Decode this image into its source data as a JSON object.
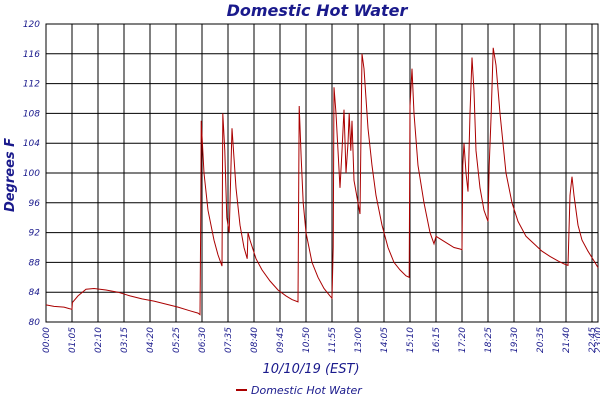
{
  "chart_data": {
    "type": "line",
    "title": "Domestic Hot Water",
    "xlabel": "10/10/19 (EST)",
    "ylabel": "Degrees F",
    "x_ticks": [
      "00:00",
      "01:05",
      "02:10",
      "03:15",
      "04:20",
      "05:25",
      "06:30",
      "07:35",
      "08:40",
      "09:45",
      "10:50",
      "11:55",
      "13:00",
      "14:05",
      "15:10",
      "16:15",
      "17:20",
      "18:25",
      "19:30",
      "20:35",
      "21:40",
      "22:45",
      "23:00"
    ],
    "y_ticks": [
      80,
      84,
      88,
      92,
      96,
      100,
      104,
      108,
      112,
      116,
      120
    ],
    "ylim": [
      80,
      120
    ],
    "xlim": [
      "00:00",
      "23:00"
    ],
    "grid": true,
    "legend_position": "bottom-center",
    "colors": {
      "line": "#aa0000",
      "text": "#1a1a8c",
      "grid": "#000000"
    },
    "series": [
      {
        "name": "Domestic Hot Water",
        "points": [
          [
            "00:00",
            82.3
          ],
          [
            "00:20",
            82.1
          ],
          [
            "00:45",
            82.0
          ],
          [
            "00:58",
            81.8
          ],
          [
            "01:05",
            81.7
          ],
          [
            "01:06",
            82.6
          ],
          [
            "01:20",
            83.5
          ],
          [
            "01:40",
            84.4
          ],
          [
            "02:00",
            84.5
          ],
          [
            "02:30",
            84.3
          ],
          [
            "03:00",
            84.0
          ],
          [
            "03:30",
            83.5
          ],
          [
            "04:00",
            83.1
          ],
          [
            "04:30",
            82.8
          ],
          [
            "05:00",
            82.4
          ],
          [
            "05:30",
            82.0
          ],
          [
            "06:00",
            81.5
          ],
          [
            "06:20",
            81.2
          ],
          [
            "06:25",
            81.0
          ],
          [
            "06:27",
            95.0
          ],
          [
            "06:28",
            107.0
          ],
          [
            "06:35",
            100.0
          ],
          [
            "06:45",
            95.0
          ],
          [
            "07:00",
            91.0
          ],
          [
            "07:10",
            89.0
          ],
          [
            "07:20",
            87.5
          ],
          [
            "07:22",
            108.0
          ],
          [
            "07:27",
            103.0
          ],
          [
            "07:32",
            94.0
          ],
          [
            "07:38",
            92.0
          ],
          [
            "07:45",
            106.0
          ],
          [
            "07:55",
            98.0
          ],
          [
            "08:05",
            93.0
          ],
          [
            "08:15",
            90.0
          ],
          [
            "08:23",
            88.5
          ],
          [
            "08:25",
            92.0
          ],
          [
            "08:30",
            91.0
          ],
          [
            "08:45",
            88.5
          ],
          [
            "09:00",
            87.0
          ],
          [
            "09:20",
            85.5
          ],
          [
            "09:40",
            84.3
          ],
          [
            "10:00",
            83.5
          ],
          [
            "10:15",
            83.0
          ],
          [
            "10:30",
            82.7
          ],
          [
            "10:33",
            109.0
          ],
          [
            "10:38",
            102.0
          ],
          [
            "10:43",
            96.0
          ],
          [
            "10:50",
            92.0
          ],
          [
            "11:05",
            88.0
          ],
          [
            "11:20",
            86.0
          ],
          [
            "11:35",
            84.5
          ],
          [
            "11:50",
            83.5
          ],
          [
            "11:55",
            83.2
          ],
          [
            "11:58",
            90.0
          ],
          [
            "12:00",
            111.5
          ],
          [
            "12:05",
            108.0
          ],
          [
            "12:12",
            101.0
          ],
          [
            "12:15",
            98.0
          ],
          [
            "12:20",
            103.0
          ],
          [
            "12:25",
            108.5
          ],
          [
            "12:30",
            100.0
          ],
          [
            "12:35",
            104.0
          ],
          [
            "12:38",
            108.0
          ],
          [
            "12:42",
            103.0
          ],
          [
            "12:45",
            107.0
          ],
          [
            "12:50",
            99.0
          ],
          [
            "13:00",
            96.0
          ],
          [
            "13:05",
            94.5
          ],
          [
            "13:10",
            116.0
          ],
          [
            "13:15",
            114.0
          ],
          [
            "13:25",
            106.0
          ],
          [
            "13:35",
            101.0
          ],
          [
            "13:45",
            97.0
          ],
          [
            "14:00",
            93.0
          ],
          [
            "14:15",
            90.0
          ],
          [
            "14:30",
            88.0
          ],
          [
            "14:45",
            87.0
          ],
          [
            "15:00",
            86.2
          ],
          [
            "15:08",
            86.0
          ],
          [
            "15:10",
            109.0
          ],
          [
            "15:15",
            114.0
          ],
          [
            "15:20",
            108.0
          ],
          [
            "15:30",
            101.0
          ],
          [
            "15:45",
            96.0
          ],
          [
            "16:00",
            92.0
          ],
          [
            "16:10",
            90.5
          ],
          [
            "16:15",
            91.5
          ],
          [
            "16:30",
            91.0
          ],
          [
            "16:45",
            90.5
          ],
          [
            "17:00",
            90.0
          ],
          [
            "17:15",
            89.8
          ],
          [
            "17:20",
            89.7
          ],
          [
            "17:22",
            101.0
          ],
          [
            "17:25",
            104.0
          ],
          [
            "17:30",
            100.0
          ],
          [
            "17:35",
            97.5
          ],
          [
            "17:40",
            108.0
          ],
          [
            "17:45",
            115.5
          ],
          [
            "17:50",
            111.0
          ],
          [
            "17:55",
            103.0
          ],
          [
            "18:05",
            98.0
          ],
          [
            "18:15",
            95.0
          ],
          [
            "18:25",
            93.5
          ],
          [
            "18:28",
            101.0
          ],
          [
            "18:33",
            108.0
          ],
          [
            "18:38",
            116.8
          ],
          [
            "18:45",
            114.5
          ],
          [
            "18:55",
            108.0
          ],
          [
            "19:10",
            100.0
          ],
          [
            "19:25",
            96.0
          ],
          [
            "19:40",
            93.5
          ],
          [
            "20:00",
            91.5
          ],
          [
            "20:20",
            90.5
          ],
          [
            "20:40",
            89.5
          ],
          [
            "21:00",
            88.8
          ],
          [
            "21:20",
            88.2
          ],
          [
            "21:35",
            87.8
          ],
          [
            "21:45",
            87.6
          ],
          [
            "21:50",
            97.0
          ],
          [
            "21:55",
            99.5
          ],
          [
            "22:00",
            97.0
          ],
          [
            "22:10",
            93.0
          ],
          [
            "22:20",
            91.0
          ],
          [
            "22:35",
            89.5
          ],
          [
            "22:50",
            88.2
          ],
          [
            "23:00",
            87.3
          ]
        ]
      }
    ]
  }
}
